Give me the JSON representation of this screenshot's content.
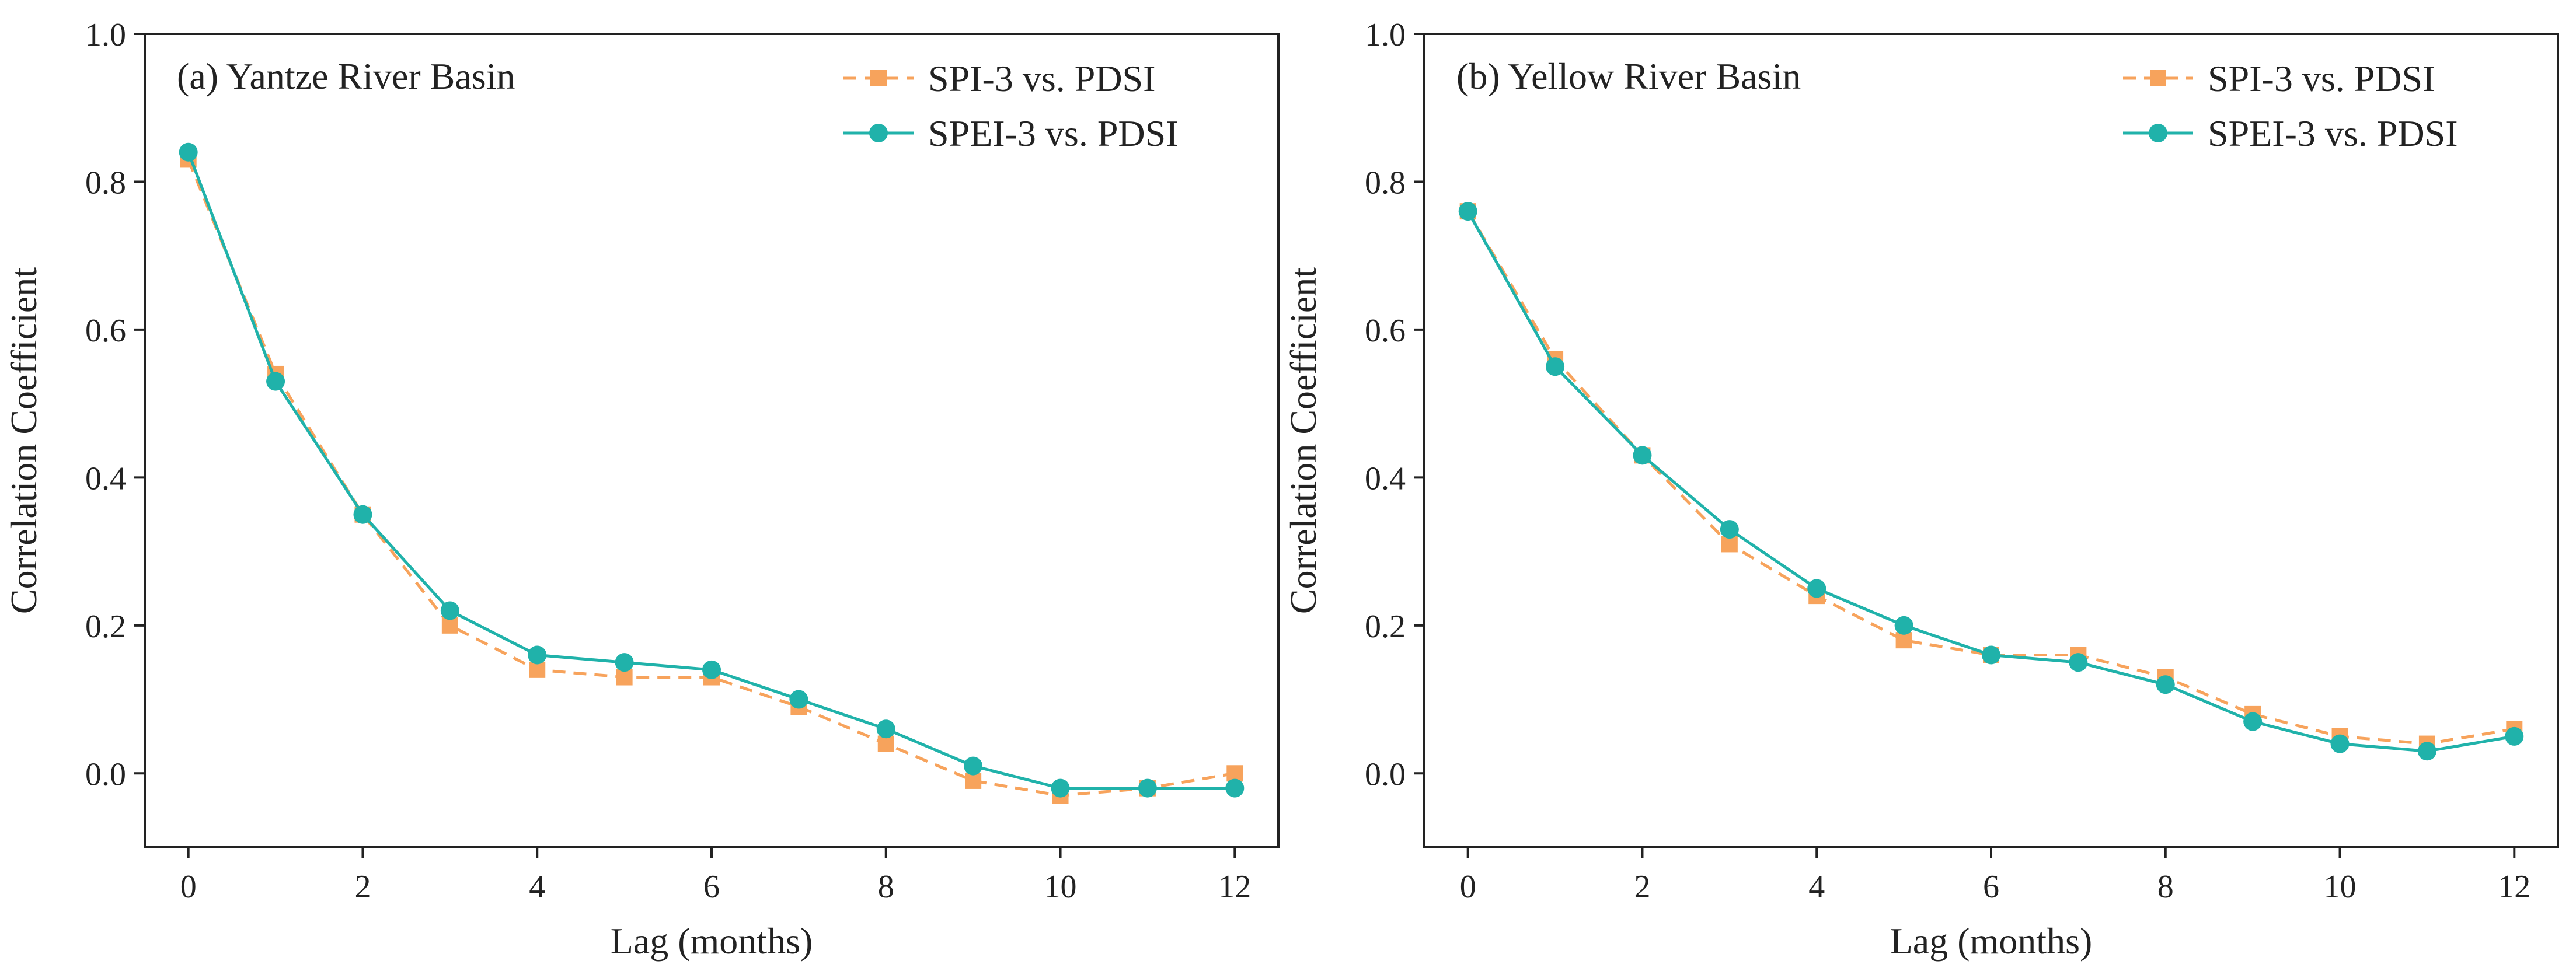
{
  "chart_data": [
    {
      "type": "line",
      "title": "(a) Yantze River Basin",
      "xlabel": "Lag (months)",
      "ylabel": "Correlation Coefficient",
      "xlim": [
        -0.5,
        12.5
      ],
      "ylim": [
        -0.1,
        1.0
      ],
      "xticks": [
        0,
        2,
        4,
        6,
        8,
        10,
        12
      ],
      "yticks": [
        0.0,
        0.2,
        0.4,
        0.6,
        0.8,
        1.0
      ],
      "grid": false,
      "legend_position": "top-right",
      "x": [
        0,
        1,
        2,
        3,
        4,
        5,
        6,
        7,
        8,
        9,
        10,
        11,
        12
      ],
      "series": [
        {
          "name": "SPI-3 vs. PDSI",
          "color": "#F7A35C",
          "line_style": "dashed",
          "marker": "square",
          "values": [
            0.83,
            0.54,
            0.35,
            0.2,
            0.14,
            0.13,
            0.13,
            0.09,
            0.04,
            -0.01,
            -0.03,
            -0.02,
            0.0
          ]
        },
        {
          "name": "SPEI-3 vs. PDSI",
          "color": "#20B2AA",
          "line_style": "solid",
          "marker": "circle",
          "values": [
            0.84,
            0.53,
            0.35,
            0.22,
            0.16,
            0.15,
            0.14,
            0.1,
            0.06,
            0.01,
            -0.02,
            -0.02,
            -0.02
          ]
        }
      ]
    },
    {
      "type": "line",
      "title": "(b) Yellow River Basin",
      "xlabel": "Lag (months)",
      "ylabel": "Correlation Coefficient",
      "xlim": [
        -0.5,
        12.5
      ],
      "ylim": [
        -0.1,
        1.0
      ],
      "xticks": [
        0,
        2,
        4,
        6,
        8,
        10,
        12
      ],
      "yticks": [
        0.0,
        0.2,
        0.4,
        0.6,
        0.8,
        1.0
      ],
      "grid": false,
      "legend_position": "top-right",
      "x": [
        0,
        1,
        2,
        3,
        4,
        5,
        6,
        7,
        8,
        9,
        10,
        11,
        12
      ],
      "series": [
        {
          "name": "SPI-3 vs. PDSI",
          "color": "#F7A35C",
          "line_style": "dashed",
          "marker": "square",
          "values": [
            0.76,
            0.56,
            0.43,
            0.31,
            0.24,
            0.18,
            0.16,
            0.16,
            0.13,
            0.08,
            0.05,
            0.04,
            0.06
          ]
        },
        {
          "name": "SPEI-3 vs. PDSI",
          "color": "#20B2AA",
          "line_style": "solid",
          "marker": "circle",
          "values": [
            0.76,
            0.55,
            0.43,
            0.33,
            0.25,
            0.2,
            0.16,
            0.15,
            0.12,
            0.07,
            0.04,
            0.03,
            0.05
          ]
        }
      ]
    }
  ]
}
